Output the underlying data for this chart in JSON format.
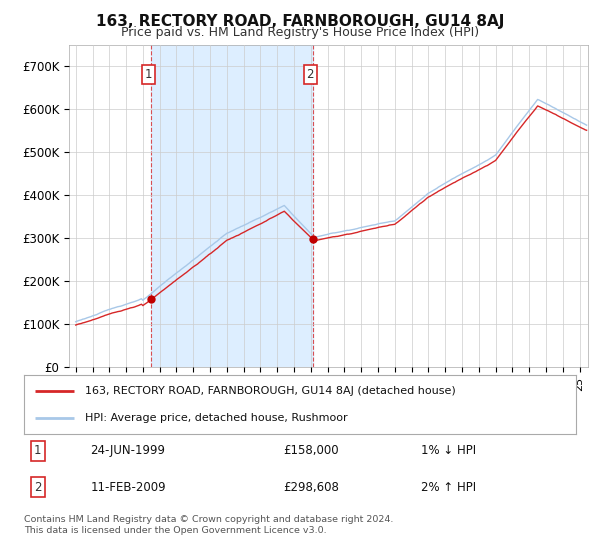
{
  "title": "163, RECTORY ROAD, FARNBOROUGH, GU14 8AJ",
  "subtitle": "Price paid vs. HM Land Registry's House Price Index (HPI)",
  "legend_line1": "163, RECTORY ROAD, FARNBOROUGH, GU14 8AJ (detached house)",
  "legend_line2": "HPI: Average price, detached house, Rushmoor",
  "sale1_label": "1",
  "sale1_date": "24-JUN-1999",
  "sale1_price": "£158,000",
  "sale1_hpi": "1% ↓ HPI",
  "sale1_year": 1999.48,
  "sale1_value": 158000,
  "sale2_label": "2",
  "sale2_date": "11-FEB-2009",
  "sale2_price": "£298,608",
  "sale2_hpi": "2% ↑ HPI",
  "sale2_year": 2009.12,
  "sale2_value": 298608,
  "footer1": "Contains HM Land Registry data © Crown copyright and database right 2024.",
  "footer2": "This data is licensed under the Open Government Licence v3.0.",
  "hpi_color": "#a8c8e8",
  "price_color": "#d62728",
  "sale_marker_color": "#c00000",
  "background_color": "#ffffff",
  "grid_color": "#cccccc",
  "shade_color": "#ddeeff",
  "ylim": [
    0,
    750000
  ],
  "xlim_start": 1994.6,
  "xlim_end": 2025.5,
  "yticks": [
    0,
    100000,
    200000,
    300000,
    400000,
    500000,
    600000,
    700000
  ]
}
